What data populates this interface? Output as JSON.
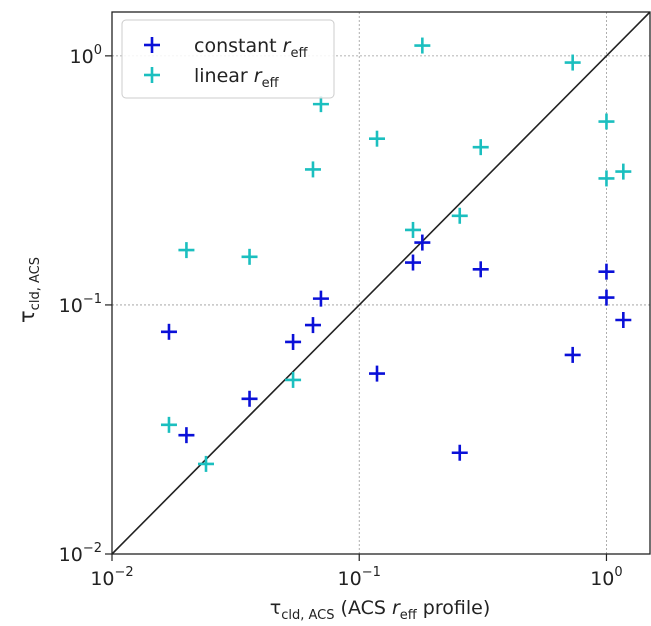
{
  "chart_data": {
    "type": "scatter",
    "xscale": "log",
    "yscale": "log",
    "xlim": [
      0.01,
      1.5
    ],
    "ylim": [
      0.01,
      1.5
    ],
    "grid": "major ticks, dotted grey",
    "legend_position": "top-left",
    "xlabel": {
      "main": "τ",
      "sub": "cld, ACS",
      "text": " (ACS ",
      "r": "r",
      "r_sub": "eff",
      "tail": " profile)"
    },
    "ylabel": {
      "main": "τ",
      "sub": "cld, ACS"
    },
    "x_ticks": [
      {
        "value": 0.01,
        "base": "10",
        "exp": "−2"
      },
      {
        "value": 0.1,
        "base": "10",
        "exp": "−1"
      },
      {
        "value": 1,
        "base": "10",
        "exp": "0"
      }
    ],
    "y_ticks": [
      {
        "value": 0.01,
        "base": "10",
        "exp": "−2"
      },
      {
        "value": 0.1,
        "base": "10",
        "exp": "−1"
      },
      {
        "value": 1,
        "base": "10",
        "exp": "0"
      }
    ],
    "reference_line": "y = x",
    "series": [
      {
        "name": "constant r_eff",
        "label": {
          "text": "constant ",
          "r": "r",
          "sub": "eff"
        },
        "color": "#0a10d8",
        "points": [
          [
            0.017,
            0.078
          ],
          [
            0.02,
            0.03
          ],
          [
            0.036,
            0.042
          ],
          [
            0.054,
            0.071
          ],
          [
            0.065,
            0.083
          ],
          [
            0.07,
            0.106
          ],
          [
            0.118,
            0.053
          ],
          [
            0.165,
            0.148
          ],
          [
            0.18,
            0.178
          ],
          [
            0.255,
            0.0255
          ],
          [
            0.31,
            0.139
          ],
          [
            0.73,
            0.063
          ],
          [
            1.0,
            0.136
          ],
          [
            1.0,
            0.107
          ],
          [
            1.17,
            0.087
          ]
        ]
      },
      {
        "name": "linear r_eff",
        "label": {
          "text": "linear ",
          "r": "r",
          "sub": "eff"
        },
        "color": "#1bbfbf",
        "points": [
          [
            0.017,
            0.033
          ],
          [
            0.02,
            0.166
          ],
          [
            0.024,
            0.023
          ],
          [
            0.036,
            0.156
          ],
          [
            0.054,
            0.05
          ],
          [
            0.065,
            0.35
          ],
          [
            0.07,
            0.64
          ],
          [
            0.118,
            0.465
          ],
          [
            0.165,
            0.2
          ],
          [
            0.18,
            1.1
          ],
          [
            0.255,
            0.228
          ],
          [
            0.31,
            0.43
          ],
          [
            0.73,
            0.94
          ],
          [
            1.0,
            0.545
          ],
          [
            1.0,
            0.322
          ],
          [
            1.17,
            0.343
          ]
        ]
      }
    ]
  }
}
